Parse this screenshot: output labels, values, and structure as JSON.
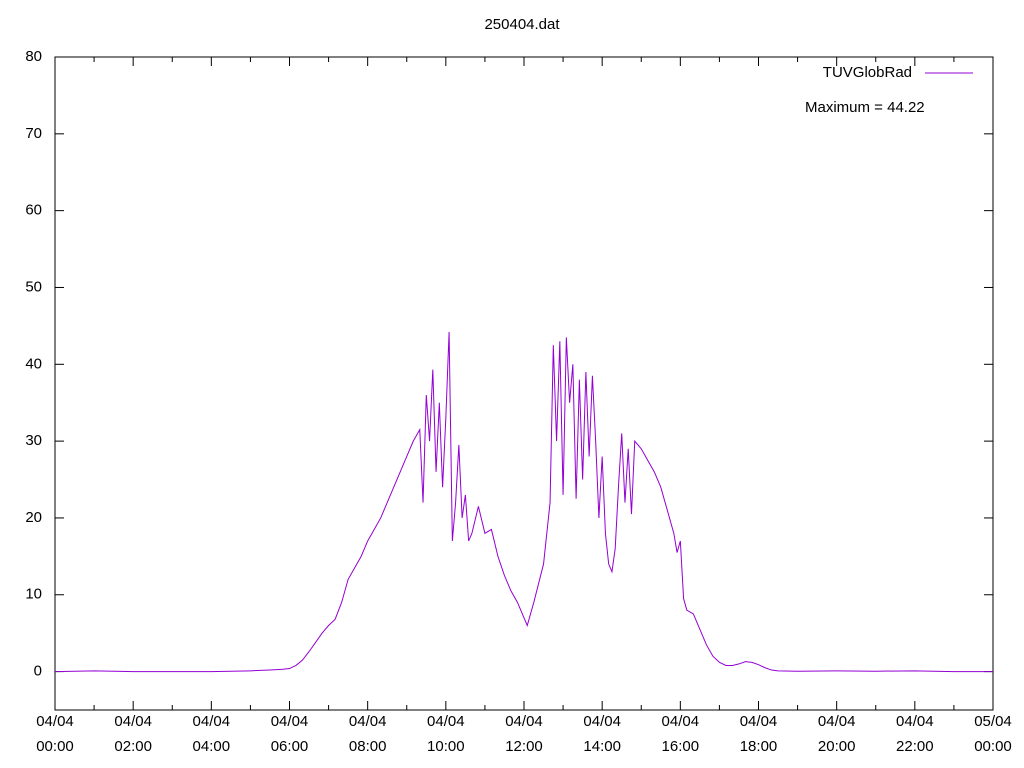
{
  "chart_data": {
    "type": "line",
    "title": "250404.dat",
    "annotation": "Maximum = 44.22",
    "legend": "top-right",
    "ylim": [
      -5,
      80
    ],
    "yticks": [
      0,
      10,
      20,
      30,
      40,
      50,
      60,
      70,
      80
    ],
    "xlim": [
      "04/04 00:00",
      "05/04 00:00"
    ],
    "xticks": [
      "04/04 00:00",
      "04/04 02:00",
      "04/04 04:00",
      "04/04 06:00",
      "04/04 08:00",
      "04/04 10:00",
      "04/04 12:00",
      "04/04 14:00",
      "04/04 16:00",
      "04/04 18:00",
      "04/04 20:00",
      "04/04 22:00",
      "05/04 00:00"
    ],
    "series": [
      {
        "name": "TUVGlobRad",
        "color": "#9400d3",
        "x": [
          "04/04 00:00",
          "04/04 01:00",
          "04/04 02:00",
          "04/04 03:00",
          "04/04 04:00",
          "04/04 05:00",
          "04/04 05:30",
          "04/04 05:50",
          "04/04 06:00",
          "04/04 06:10",
          "04/04 06:20",
          "04/04 06:30",
          "04/04 06:40",
          "04/04 06:50",
          "04/04 07:00",
          "04/04 07:10",
          "04/04 07:20",
          "04/04 07:30",
          "04/04 07:40",
          "04/04 07:50",
          "04/04 08:00",
          "04/04 08:10",
          "04/04 08:20",
          "04/04 08:30",
          "04/04 08:40",
          "04/04 08:50",
          "04/04 09:00",
          "04/04 09:10",
          "04/04 09:20",
          "04/04 09:25",
          "04/04 09:30",
          "04/04 09:35",
          "04/04 09:40",
          "04/04 09:45",
          "04/04 09:50",
          "04/04 09:55",
          "04/04 10:00",
          "04/04 10:05",
          "04/04 10:10",
          "04/04 10:15",
          "04/04 10:20",
          "04/04 10:25",
          "04/04 10:30",
          "04/04 10:35",
          "04/04 10:40",
          "04/04 10:50",
          "04/04 11:00",
          "04/04 11:10",
          "04/04 11:20",
          "04/04 11:30",
          "04/04 11:40",
          "04/04 11:50",
          "04/04 12:00",
          "04/04 12:05",
          "04/04 12:15",
          "04/04 12:30",
          "04/04 12:40",
          "04/04 12:45",
          "04/04 12:50",
          "04/04 12:55",
          "04/04 13:00",
          "04/04 13:05",
          "04/04 13:10",
          "04/04 13:15",
          "04/04 13:20",
          "04/04 13:25",
          "04/04 13:30",
          "04/04 13:35",
          "04/04 13:40",
          "04/04 13:45",
          "04/04 13:50",
          "04/04 13:55",
          "04/04 14:00",
          "04/04 14:05",
          "04/04 14:10",
          "04/04 14:15",
          "04/04 14:20",
          "04/04 14:25",
          "04/04 14:30",
          "04/04 14:35",
          "04/04 14:40",
          "04/04 14:45",
          "04/04 14:50",
          "04/04 15:00",
          "04/04 15:10",
          "04/04 15:20",
          "04/04 15:30",
          "04/04 15:40",
          "04/04 15:50",
          "04/04 15:55",
          "04/04 16:00",
          "04/04 16:05",
          "04/04 16:10",
          "04/04 16:20",
          "04/04 16:30",
          "04/04 16:40",
          "04/04 16:50",
          "04/04 17:00",
          "04/04 17:10",
          "04/04 17:20",
          "04/04 17:30",
          "04/04 17:40",
          "04/04 17:50",
          "04/04 18:00",
          "04/04 18:10",
          "04/04 18:20",
          "04/04 18:30",
          "04/04 19:00",
          "04/04 20:00",
          "04/04 21:00",
          "04/04 22:00",
          "04/04 23:00",
          "05/04 00:00"
        ],
        "values": [
          0,
          0.1,
          0,
          0,
          0,
          0.1,
          0.2,
          0.3,
          0.4,
          0.8,
          1.5,
          2.6,
          3.8,
          5.0,
          6.0,
          6.8,
          9,
          12,
          13.5,
          15,
          17,
          18.5,
          20,
          22,
          24,
          26,
          28,
          30,
          31.5,
          22,
          36,
          30,
          39.3,
          26,
          35,
          24,
          33,
          44.22,
          17,
          22,
          29.5,
          20,
          23,
          17,
          18,
          21.5,
          18,
          18.5,
          15,
          12.5,
          10.5,
          9,
          7,
          6,
          9,
          14,
          22,
          42.5,
          30,
          43,
          23,
          43.5,
          35,
          40,
          22.5,
          38,
          25,
          39,
          28,
          38.5,
          30,
          20,
          28,
          18,
          14,
          13,
          16,
          24,
          31,
          22,
          29,
          20.5,
          30,
          29,
          27.5,
          26,
          24,
          21,
          18,
          15.5,
          17,
          9.5,
          8,
          7.5,
          5.5,
          3.5,
          2,
          1.2,
          0.8,
          0.8,
          1.0,
          1.3,
          1.2,
          0.9,
          0.5,
          0.2,
          0.1,
          0.05,
          0.1,
          0.05,
          0.1,
          0,
          0
        ]
      }
    ]
  }
}
